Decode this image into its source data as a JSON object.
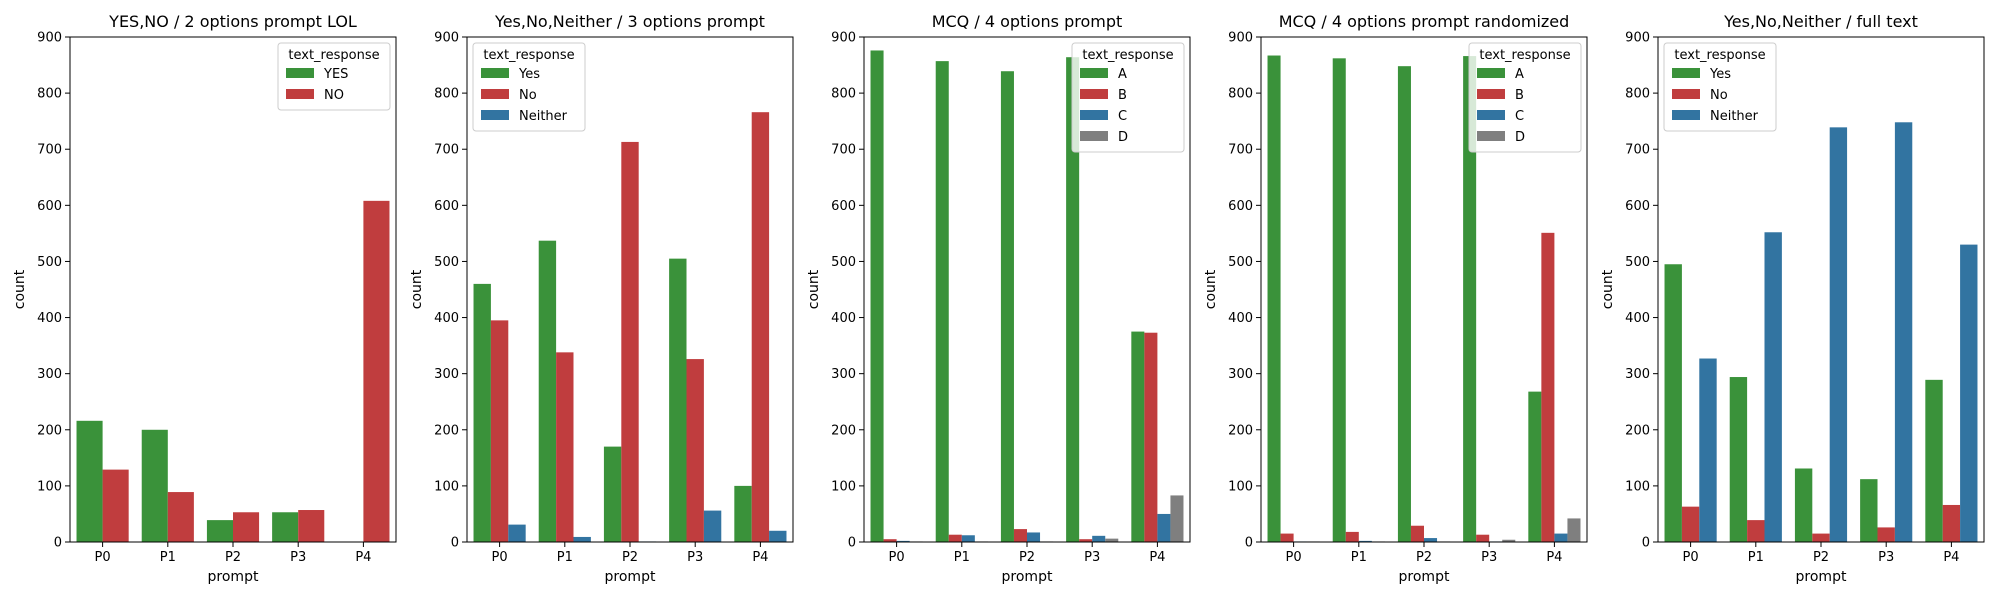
{
  "chart_data": [
    {
      "type": "bar",
      "title": "YES,NO / 2 options prompt LOL",
      "xlabel": "prompt",
      "ylabel": "count",
      "ylim": [
        0,
        900
      ],
      "yticks": [
        0,
        100,
        200,
        300,
        400,
        500,
        600,
        700,
        800,
        900
      ],
      "categories": [
        "P0",
        "P1",
        "P2",
        "P3",
        "P4"
      ],
      "legend": {
        "title": "text_response",
        "position": "top-right"
      },
      "series": [
        {
          "name": "YES",
          "color": "#3a923a",
          "values": [
            216,
            200,
            39,
            53,
            0
          ]
        },
        {
          "name": "NO",
          "color": "#c03d3e",
          "values": [
            129,
            89,
            53,
            57,
            608
          ]
        }
      ]
    },
    {
      "type": "bar",
      "title": "Yes,No,Neither / 3 options prompt",
      "xlabel": "prompt",
      "ylabel": "count",
      "ylim": [
        0,
        900
      ],
      "yticks": [
        0,
        100,
        200,
        300,
        400,
        500,
        600,
        700,
        800,
        900
      ],
      "categories": [
        "P0",
        "P1",
        "P2",
        "P3",
        "P4"
      ],
      "legend": {
        "title": "text_response",
        "position": "top-left"
      },
      "series": [
        {
          "name": "Yes",
          "color": "#3a923a",
          "values": [
            460,
            537,
            170,
            505,
            100
          ]
        },
        {
          "name": "No",
          "color": "#c03d3e",
          "values": [
            395,
            338,
            713,
            326,
            766
          ]
        },
        {
          "name": "Neither",
          "color": "#3274a1",
          "values": [
            31,
            9,
            1,
            56,
            20
          ]
        }
      ]
    },
    {
      "type": "bar",
      "title": "MCQ / 4 options prompt",
      "xlabel": "prompt",
      "ylabel": "count",
      "ylim": [
        0,
        900
      ],
      "yticks": [
        0,
        100,
        200,
        300,
        400,
        500,
        600,
        700,
        800,
        900
      ],
      "categories": [
        "P0",
        "P1",
        "P2",
        "P3",
        "P4"
      ],
      "legend": {
        "title": "text_response",
        "position": "top-right"
      },
      "series": [
        {
          "name": "A",
          "color": "#3a923a",
          "values": [
            876,
            857,
            839,
            864,
            375
          ]
        },
        {
          "name": "B",
          "color": "#c03d3e",
          "values": [
            5,
            13,
            23,
            5,
            373
          ]
        },
        {
          "name": "C",
          "color": "#3274a1",
          "values": [
            2,
            12,
            17,
            11,
            50
          ]
        },
        {
          "name": "D",
          "color": "#7f7f7f",
          "values": [
            1,
            1,
            1,
            6,
            83
          ]
        }
      ]
    },
    {
      "type": "bar",
      "title": "MCQ / 4 options prompt randomized",
      "xlabel": "prompt",
      "ylabel": "count",
      "ylim": [
        0,
        900
      ],
      "yticks": [
        0,
        100,
        200,
        300,
        400,
        500,
        600,
        700,
        800,
        900
      ],
      "categories": [
        "P0",
        "P1",
        "P2",
        "P3",
        "P4"
      ],
      "legend": {
        "title": "text_response",
        "position": "top-right"
      },
      "series": [
        {
          "name": "A",
          "color": "#3a923a",
          "values": [
            867,
            862,
            848,
            866,
            268
          ]
        },
        {
          "name": "B",
          "color": "#c03d3e",
          "values": [
            15,
            18,
            29,
            13,
            551
          ]
        },
        {
          "name": "C",
          "color": "#3274a1",
          "values": [
            1,
            2,
            7,
            1,
            15
          ]
        },
        {
          "name": "D",
          "color": "#7f7f7f",
          "values": [
            1,
            1,
            1,
            4,
            42
          ]
        }
      ]
    },
    {
      "type": "bar",
      "title": "Yes,No,Neither / full text",
      "xlabel": "prompt",
      "ylabel": "count",
      "ylim": [
        0,
        900
      ],
      "yticks": [
        0,
        100,
        200,
        300,
        400,
        500,
        600,
        700,
        800,
        900
      ],
      "categories": [
        "P0",
        "P1",
        "P2",
        "P3",
        "P4"
      ],
      "legend": {
        "title": "text_response",
        "position": "top-left"
      },
      "series": [
        {
          "name": "Yes",
          "color": "#3a923a",
          "values": [
            495,
            294,
            131,
            112,
            289
          ]
        },
        {
          "name": "No",
          "color": "#c03d3e",
          "values": [
            63,
            39,
            15,
            26,
            66
          ]
        },
        {
          "name": "Neither",
          "color": "#3274a1",
          "values": [
            327,
            552,
            739,
            748,
            530
          ]
        }
      ]
    }
  ]
}
